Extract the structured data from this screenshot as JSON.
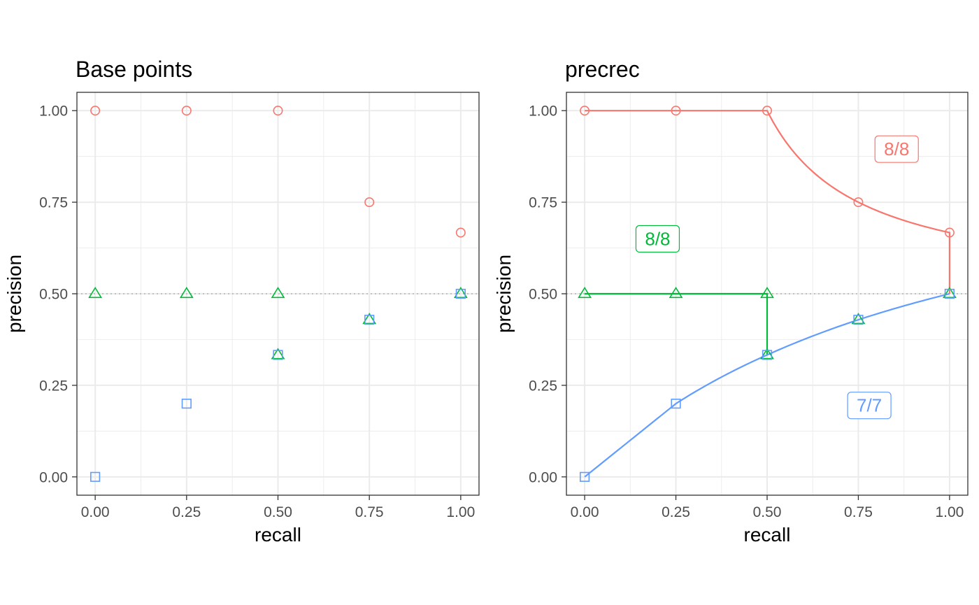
{
  "chart_data": [
    {
      "type": "scatter",
      "title": "Base points",
      "xlabel": "recall",
      "ylabel": "precision",
      "xlim": [
        -0.05,
        1.05
      ],
      "ylim": [
        -0.05,
        1.05
      ],
      "x_ticks": [
        "0.00",
        "0.25",
        "0.50",
        "0.75",
        "1.00"
      ],
      "y_ticks": [
        "0.00",
        "0.25",
        "0.50",
        "0.75",
        "1.00"
      ],
      "grid": true,
      "reference_line_y": 0.5,
      "series": [
        {
          "color": "#F8766D",
          "marker": "circle",
          "points": [
            {
              "x": 0,
              "y": 1
            },
            {
              "x": 0.25,
              "y": 1
            },
            {
              "x": 0.5,
              "y": 1
            },
            {
              "x": 0.75,
              "y": 0.75
            },
            {
              "x": 1,
              "y": 0.667
            }
          ]
        },
        {
          "color": "#00BA38",
          "marker": "triangle",
          "points": [
            {
              "x": 0,
              "y": 0.5
            },
            {
              "x": 0.25,
              "y": 0.5
            },
            {
              "x": 0.5,
              "y": 0.5
            },
            {
              "x": 0.5,
              "y": 0.333
            },
            {
              "x": 0.75,
              "y": 0.429
            },
            {
              "x": 1,
              "y": 0.5
            }
          ]
        },
        {
          "color": "#619CFF",
          "marker": "square",
          "points": [
            {
              "x": 0,
              "y": 0
            },
            {
              "x": 0.25,
              "y": 0.2
            },
            {
              "x": 0.5,
              "y": 0.333
            },
            {
              "x": 0.75,
              "y": 0.429
            },
            {
              "x": 1,
              "y": 0.5
            }
          ]
        }
      ]
    },
    {
      "type": "line",
      "title": "precrec",
      "xlabel": "recall",
      "ylabel": "precision",
      "xlim": [
        -0.05,
        1.05
      ],
      "ylim": [
        -0.05,
        1.05
      ],
      "x_ticks": [
        "0.00",
        "0.25",
        "0.50",
        "0.75",
        "1.00"
      ],
      "y_ticks": [
        "0.00",
        "0.25",
        "0.50",
        "0.75",
        "1.00"
      ],
      "grid": true,
      "reference_line_y": 0.5,
      "series": [
        {
          "color": "#F8766D",
          "marker": "circle",
          "curve": "flat-then-interp",
          "points": [
            {
              "x": 0,
              "y": 1
            },
            {
              "x": 0.25,
              "y": 1
            },
            {
              "x": 0.5,
              "y": 1
            },
            {
              "x": 0.75,
              "y": 0.75
            },
            {
              "x": 1,
              "y": 0.667
            },
            {
              "x": 1,
              "y": 0.5
            }
          ],
          "label": "8/8",
          "label_pos": {
            "x": 0.855,
            "y": 0.895
          }
        },
        {
          "color": "#00BA38",
          "marker": "triangle",
          "curve": "step",
          "points": [
            {
              "x": 0,
              "y": 0.5
            },
            {
              "x": 0.25,
              "y": 0.5
            },
            {
              "x": 0.5,
              "y": 0.5
            },
            {
              "x": 0.5,
              "y": 0.333
            },
            {
              "x": 0.75,
              "y": 0.429
            },
            {
              "x": 1,
              "y": 0.5
            }
          ],
          "label": "8/8",
          "label_pos": {
            "x": 0.2,
            "y": 0.65
          }
        },
        {
          "color": "#619CFF",
          "marker": "square",
          "curve": "interp",
          "points": [
            {
              "x": 0,
              "y": 0
            },
            {
              "x": 0.25,
              "y": 0.2
            },
            {
              "x": 0.5,
              "y": 0.333
            },
            {
              "x": 0.75,
              "y": 0.429
            },
            {
              "x": 1,
              "y": 0.5
            }
          ],
          "label": "7/7",
          "label_pos": {
            "x": 0.78,
            "y": 0.195
          }
        }
      ]
    }
  ]
}
